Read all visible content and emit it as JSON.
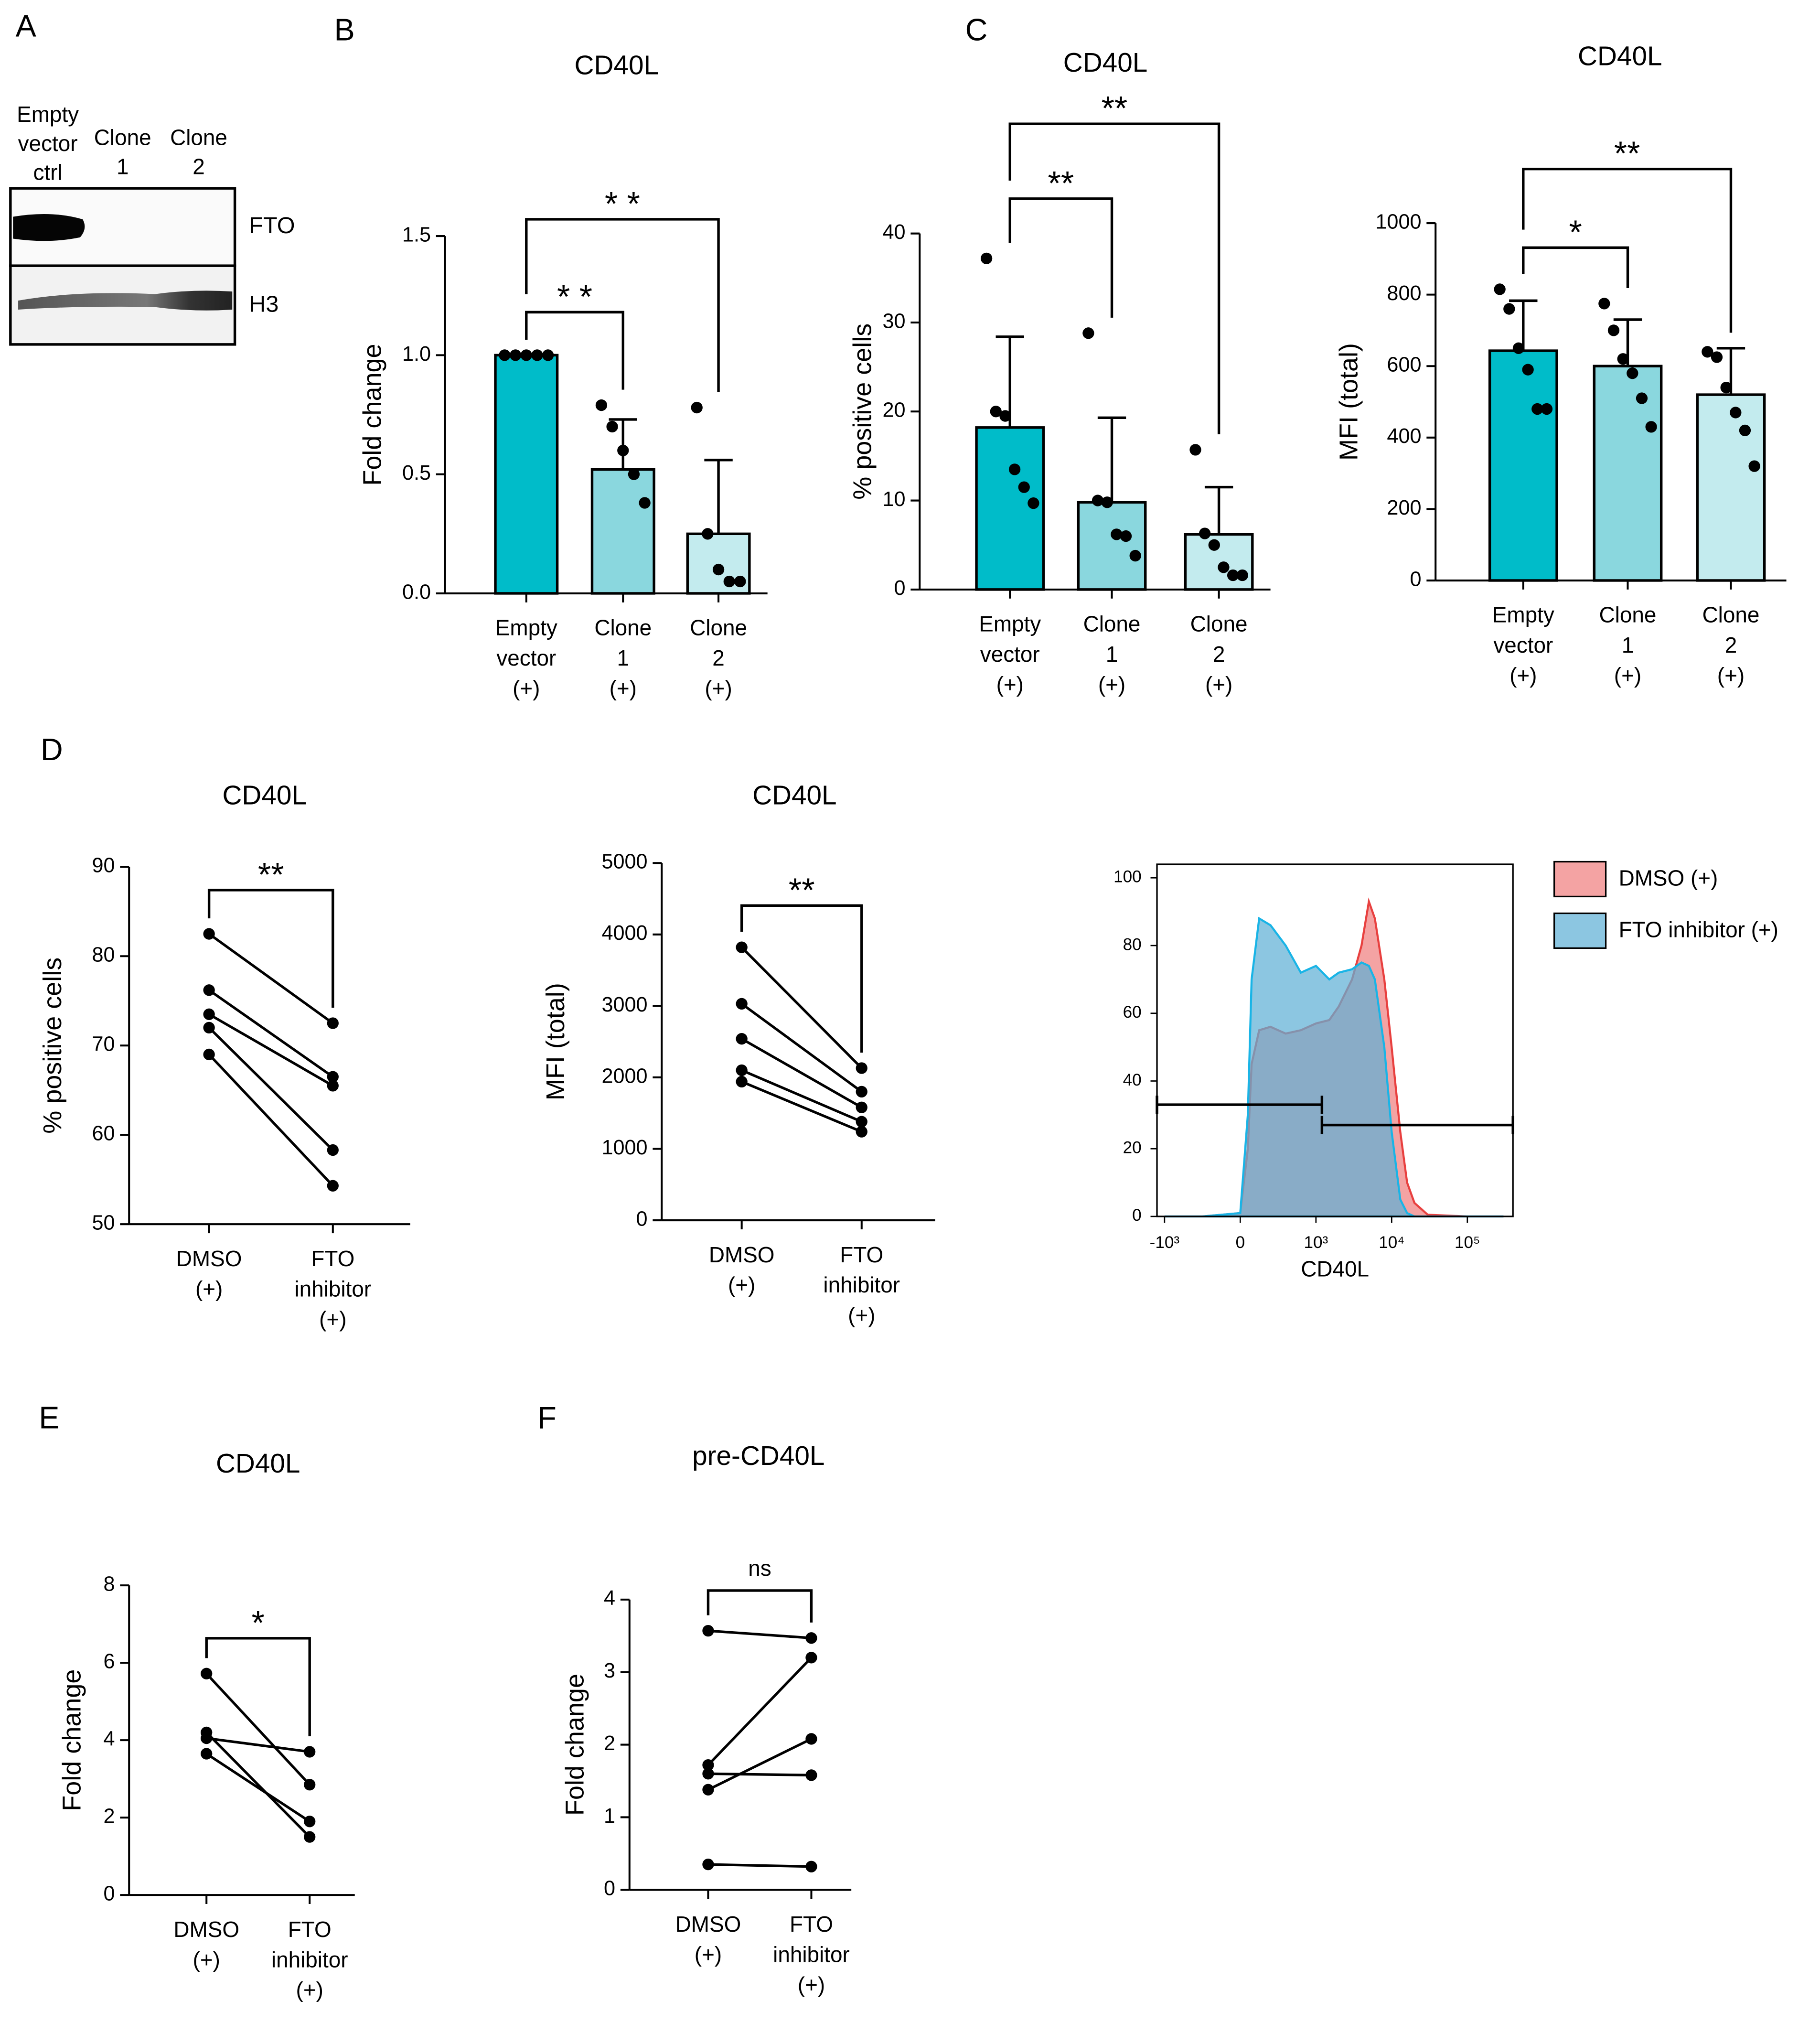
{
  "chart_data": [
    {
      "type": "blot",
      "panel": "A",
      "lanes": [
        [
          "Empty",
          "vector",
          "ctrl"
        ],
        [
          "Clone",
          "1"
        ],
        [
          "Clone",
          "2"
        ]
      ],
      "bands": [
        "FTO",
        "H3"
      ]
    },
    {
      "type": "bar",
      "panel": "B",
      "title": "CD40L",
      "ylabel": "Fold change",
      "categories": [
        [
          "Empty",
          "vector",
          "(+)"
        ],
        [
          "Clone",
          "1",
          "(+)"
        ],
        [
          "Clone",
          "2",
          "(+)"
        ]
      ],
      "values": [
        1.0,
        0.52,
        0.25
      ],
      "errors": [
        0,
        0.21,
        0.31
      ],
      "points": [
        [
          1,
          1,
          1,
          1,
          1
        ],
        [
          0.79,
          0.7,
          0.6,
          0.5,
          0.38
        ],
        [
          0.78,
          0.25,
          0.1,
          0.05,
          0.05
        ]
      ],
      "colors": [
        "#00bcc9",
        "#8ad7de",
        "#c3ebee"
      ],
      "ylim": [
        0,
        1.5
      ],
      "yticks": [
        {
          "value": 0,
          "label": "0.0"
        },
        0.5,
        {
          "value": 1,
          "label": "1.0"
        },
        1.5
      ],
      "significance": [
        {
          "from": 0,
          "to": 1,
          "label": "* *"
        },
        {
          "from": 0,
          "to": 2,
          "label": "* *"
        }
      ]
    },
    {
      "type": "bar",
      "panel": "C",
      "title": "CD40L",
      "ylabel": "% positive cells",
      "categories": [
        [
          "Empty",
          "vector",
          "(+)"
        ],
        [
          "Clone",
          "1",
          "(+)"
        ],
        [
          "Clone",
          "2",
          "(+)"
        ]
      ],
      "values": [
        18.2,
        9.8,
        6.2
      ],
      "errors": [
        10.2,
        9.5,
        5.3
      ],
      "points": [
        [
          37.2,
          20,
          19.5,
          13.5,
          11.5,
          9.7
        ],
        [
          28.8,
          10,
          9.8,
          6.2,
          6,
          3.8
        ],
        [
          15.7,
          6.3,
          5,
          2.5,
          1.6,
          1.6
        ]
      ],
      "colors": [
        "#00bcc9",
        "#8ad7de",
        "#c3ebee"
      ],
      "ylim": [
        0,
        40
      ],
      "yticks": [
        0,
        10,
        20,
        30,
        40
      ],
      "significance": [
        {
          "from": 0,
          "to": 1,
          "label": "**"
        },
        {
          "from": 0,
          "to": 2,
          "label": "**"
        }
      ]
    },
    {
      "type": "bar",
      "title": "CD40L",
      "ylabel": "MFI (total)",
      "categories": [
        [
          "Empty",
          "vector",
          "(+)"
        ],
        [
          "Clone",
          "1",
          "(+)"
        ],
        [
          "Clone",
          "2",
          "(+)"
        ]
      ],
      "values": [
        643,
        600,
        520
      ],
      "errors": [
        140,
        130,
        130
      ],
      "points": [
        [
          815,
          760,
          650,
          590,
          480,
          480
        ],
        [
          775,
          700,
          620,
          580,
          510,
          430
        ],
        [
          640,
          625,
          540,
          470,
          420,
          320
        ]
      ],
      "colors": [
        "#00bcc9",
        "#8ad7de",
        "#c3ebee"
      ],
      "ylim": [
        0,
        1000
      ],
      "yticks": [
        0,
        200,
        400,
        600,
        800,
        1000
      ],
      "significance": [
        {
          "from": 0,
          "to": 1,
          "label": "*"
        },
        {
          "from": 0,
          "to": 2,
          "label": "**"
        }
      ]
    },
    {
      "type": "paired",
      "panel": "D",
      "title": "CD40L",
      "ylabel": "% positive cells",
      "categories": [
        [
          "DMSO",
          "(+)"
        ],
        [
          "FTO",
          "inhibitor",
          "(+)"
        ]
      ],
      "pairs": [
        [
          82.5,
          72.5
        ],
        [
          76.2,
          66.5
        ],
        [
          73.5,
          65.5
        ],
        [
          72,
          58.3
        ],
        [
          69,
          54.3
        ]
      ],
      "ylim": [
        50,
        90
      ],
      "yticks": [
        50,
        60,
        70,
        80,
        90
      ],
      "significance": [
        {
          "from": 0,
          "to": 1,
          "label": "**"
        }
      ]
    },
    {
      "type": "paired",
      "title": "CD40L",
      "ylabel": "MFI (total)",
      "categories": [
        [
          "DMSO",
          "(+)"
        ],
        [
          "FTO",
          "inhibitor",
          "(+)"
        ]
      ],
      "pairs": [
        [
          3820,
          2130
        ],
        [
          3030,
          1800
        ],
        [
          2540,
          1580
        ],
        [
          2100,
          1380
        ],
        [
          1940,
          1240
        ]
      ],
      "ylim": [
        0,
        5000
      ],
      "yticks": [
        0,
        1000,
        2000,
        3000,
        4000,
        5000
      ],
      "significance": [
        {
          "from": 0,
          "to": 1,
          "label": "**"
        }
      ]
    },
    {
      "type": "flow",
      "xlabel": "CD40L",
      "xscale": "biexponential",
      "x": [
        -1000,
        -500,
        0,
        100,
        150,
        250,
        400,
        600,
        800,
        1000,
        1500,
        2000,
        3000,
        4000,
        5000,
        6000,
        8000,
        10000,
        13000,
        16000,
        20000,
        30000,
        100000,
        300000
      ],
      "series": [
        {
          "name": "DMSO (+)",
          "color": "#f4a3a3",
          "line_color": "#e8403f",
          "values": [
            0,
            0,
            1,
            20,
            45,
            55,
            56,
            54,
            55,
            57,
            58,
            62,
            70,
            80,
            93,
            88,
            70,
            50,
            25,
            10,
            4,
            0.5,
            0,
            0
          ]
        },
        {
          "name": "FTO inhibitor (+)",
          "color": "#5fb0d6",
          "line_color": "#19b4e6",
          "values": [
            0,
            0,
            1,
            30,
            70,
            88,
            86,
            80,
            72,
            74,
            70,
            72,
            73,
            75,
            74,
            70,
            50,
            25,
            5,
            1,
            0,
            0,
            0,
            0
          ]
        }
      ],
      "gates": [
        {
          "x": [
            -1100,
            1200
          ],
          "y": 33
        },
        {
          "x": [
            1200,
            400000
          ],
          "y": 27
        }
      ],
      "xlim": [
        -1100,
        400000
      ],
      "xticks": [
        {
          "value": -1000,
          "label": "-10³"
        },
        0,
        {
          "value": 1000,
          "label": "10³"
        },
        {
          "value": 10000,
          "label": "10⁴"
        },
        {
          "value": 100000,
          "label": "10⁵"
        }
      ],
      "ylim": [
        0,
        104
      ],
      "yticks": [
        0,
        20,
        40,
        60,
        80,
        100
      ]
    },
    {
      "type": "paired",
      "panel": "E",
      "title": "CD40L",
      "ylabel": "Fold change",
      "categories": [
        [
          "DMSO",
          "(+)"
        ],
        [
          "FTO",
          "inhibitor",
          "(+)"
        ]
      ],
      "pairs": [
        [
          5.72,
          2.85
        ],
        [
          4.2,
          1.5
        ],
        [
          4.05,
          3.7
        ],
        [
          3.65,
          1.9
        ]
      ],
      "ylim": [
        0,
        8
      ],
      "yticks": [
        0,
        2,
        4,
        6,
        8
      ],
      "significance": [
        {
          "from": 0,
          "to": 1,
          "label": "*"
        }
      ]
    },
    {
      "type": "paired",
      "panel": "F",
      "title": "pre-CD40L",
      "ylabel": "Fold change",
      "categories": [
        [
          "DMSO",
          "(+)"
        ],
        [
          "FTO",
          "inhibitor",
          "(+)"
        ]
      ],
      "pairs": [
        [
          3.57,
          3.47
        ],
        [
          1.72,
          3.2
        ],
        [
          1.6,
          1.58
        ],
        [
          1.38,
          2.08
        ],
        [
          0.35,
          0.32
        ]
      ],
      "ylim": [
        0,
        4
      ],
      "yticks": [
        0,
        1,
        2,
        3,
        4
      ],
      "significance": [
        {
          "from": 0,
          "to": 1,
          "label": "ns"
        }
      ]
    }
  ]
}
